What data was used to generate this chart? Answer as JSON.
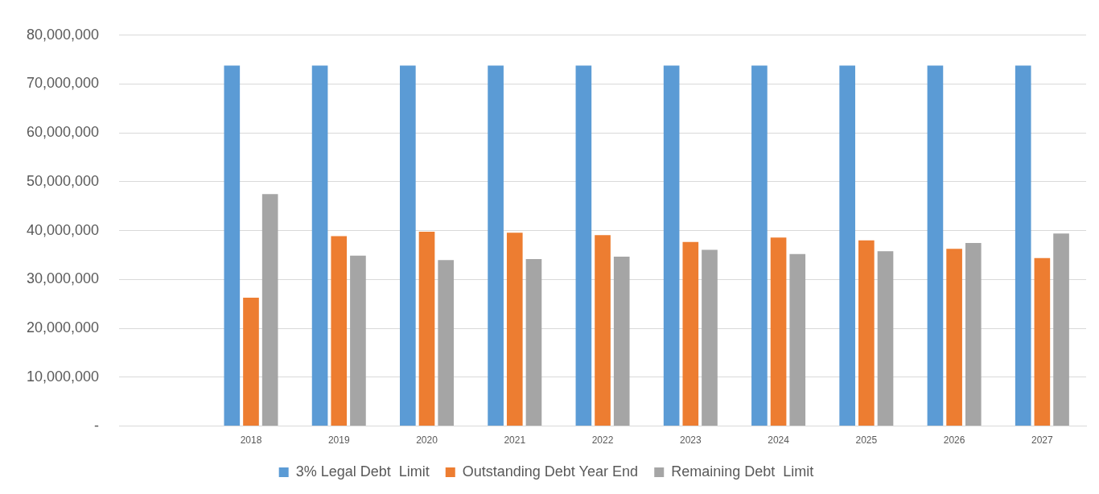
{
  "chart_data": {
    "type": "bar",
    "categories": [
      null,
      "2018",
      "2019",
      "2020",
      "2021",
      "2022",
      "2023",
      "2024",
      "2025",
      "2026",
      "2027"
    ],
    "series": [
      {
        "name": "3% Legal Debt  Limit",
        "color": "#5b9bd5",
        "values": [
          null,
          73800000,
          73800000,
          73800000,
          73800000,
          73800000,
          73800000,
          73800000,
          73800000,
          73800000,
          73800000
        ]
      },
      {
        "name": "Outstanding Debt Year End",
        "color": "#ed7d31",
        "values": [
          null,
          26300000,
          38900000,
          39800000,
          39600000,
          39100000,
          37700000,
          38600000,
          38000000,
          36300000,
          34400000
        ]
      },
      {
        "name": "Remaining Debt  Limit",
        "color": "#a5a5a5",
        "values": [
          null,
          47500000,
          34900000,
          34000000,
          34200000,
          34700000,
          36100000,
          35200000,
          35800000,
          37500000,
          39400000
        ]
      }
    ],
    "ylim": [
      0,
      80000000
    ],
    "yticks": [
      {
        "value": 0,
        "label": "-"
      },
      {
        "value": 10000000,
        "label": "10,000,000"
      },
      {
        "value": 20000000,
        "label": "20,000,000"
      },
      {
        "value": 30000000,
        "label": "30,000,000"
      },
      {
        "value": 40000000,
        "label": "40,000,000"
      },
      {
        "value": 50000000,
        "label": "50,000,000"
      },
      {
        "value": 60000000,
        "label": "60,000,000"
      },
      {
        "value": 70000000,
        "label": "70,000,000"
      },
      {
        "value": 80000000,
        "label": "80,000,000"
      }
    ],
    "grid": "y",
    "legend": "bottom"
  }
}
